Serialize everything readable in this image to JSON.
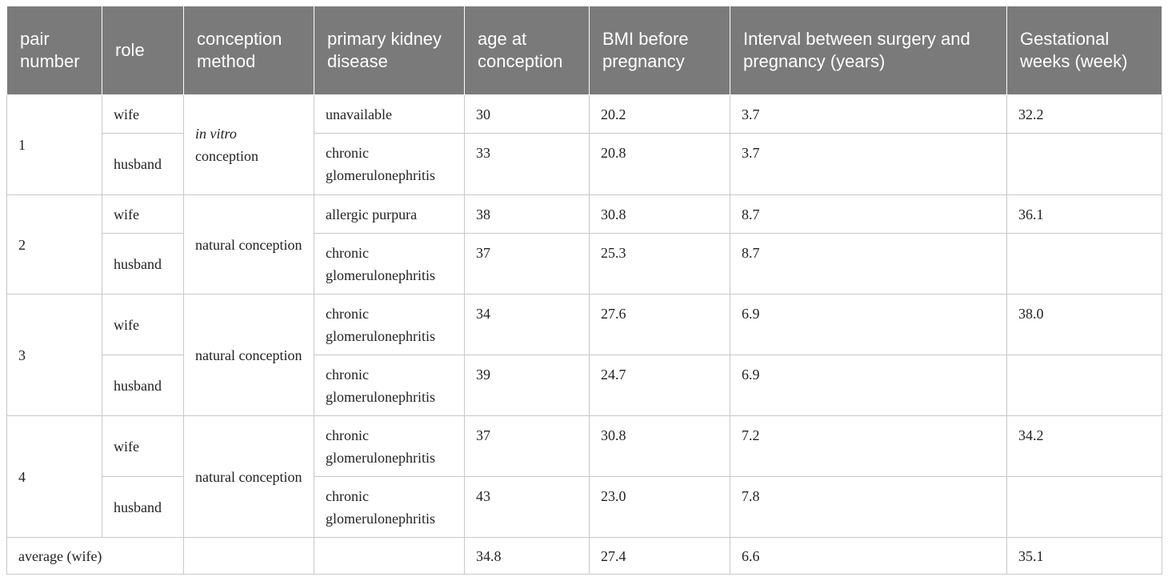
{
  "headers": {
    "pair_number": "pair number",
    "role": "role",
    "conception_method": "conception method",
    "primary_kidney_disease": "primary kidney disease",
    "age_at_conception": "age at conception",
    "bmi_before_pregnancy": "BMI before pregnancy",
    "interval": "Interval between surgery and pregnancy (years)",
    "gestational_weeks": "Gestational weeks (week)"
  },
  "pairs": [
    {
      "number": "1",
      "method_italic": "in vitro",
      "method": "conception",
      "wife": {
        "role": "wife",
        "disease": "unavailable",
        "age": "30",
        "bmi": "20.2",
        "interval": "3.7",
        "gestational": "32.2"
      },
      "husband": {
        "role": "husband",
        "disease": "chronic glomerulonephritis",
        "age": "33",
        "bmi": "20.8",
        "interval": "3.7",
        "gestational": ""
      }
    },
    {
      "number": "2",
      "method": "natural conception",
      "wife": {
        "role": "wife",
        "disease": "allergic purpura",
        "age": "38",
        "bmi": "30.8",
        "interval": "8.7",
        "gestational": "36.1"
      },
      "husband": {
        "role": "husband",
        "disease": "chronic glomerulonephritis",
        "age": "37",
        "bmi": "25.3",
        "interval": "8.7",
        "gestational": ""
      }
    },
    {
      "number": "3",
      "method": "natural conception",
      "wife": {
        "role": "wife",
        "disease": "chronic glomerulonephritis",
        "age": "34",
        "bmi": "27.6",
        "interval": "6.9",
        "gestational": "38.0"
      },
      "husband": {
        "role": "husband",
        "disease": "chronic glomerulonephritis",
        "age": "39",
        "bmi": "24.7",
        "interval": "6.9",
        "gestational": ""
      }
    },
    {
      "number": "4",
      "method": "natural conception",
      "wife": {
        "role": "wife",
        "disease": "chronic glomerulonephritis",
        "age": "37",
        "bmi": "30.8",
        "interval": "7.2",
        "gestational": "34.2"
      },
      "husband": {
        "role": "husband",
        "disease": "chronic glomerulonephritis",
        "age": "43",
        "bmi": "23.0",
        "interval": "7.8",
        "gestational": ""
      }
    }
  ],
  "average": {
    "label": "average (wife)",
    "method": "",
    "disease": "",
    "age": "34.8",
    "bmi": "27.4",
    "interval": "6.6",
    "gestational": "35.1"
  }
}
